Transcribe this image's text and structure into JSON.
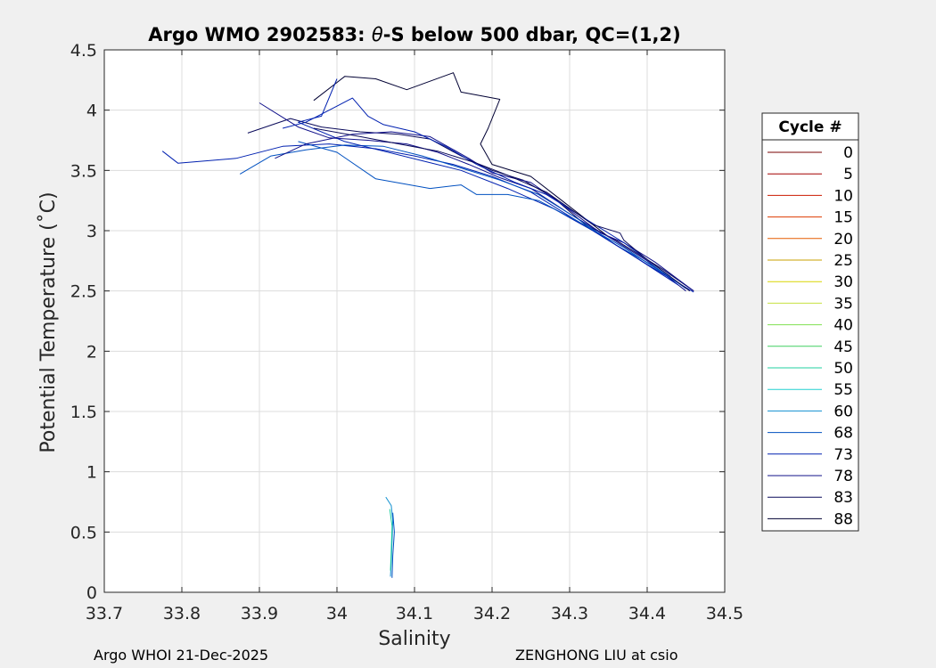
{
  "chart_data": {
    "type": "line",
    "title_prefix": "Argo WMO 2902583: ",
    "title_symbol": "θ",
    "title_suffix": "-S below 500 dbar,  QC=(1,2)",
    "xlabel": "Salinity",
    "ylabel": "Potential Temperature (˚C)",
    "xlim": [
      33.7,
      34.5
    ],
    "ylim": [
      0,
      4.5
    ],
    "xticks": [
      "33.7",
      "33.8",
      "33.9",
      "34",
      "34.1",
      "34.2",
      "34.3",
      "34.4",
      "34.5"
    ],
    "yticks": [
      "0",
      "0.5",
      "1",
      "1.5",
      "2",
      "2.5",
      "3",
      "3.5",
      "4",
      "4.5"
    ],
    "grid": true,
    "legend": {
      "title": "Cycle #",
      "placement": "right",
      "entries": [
        "0",
        "5",
        "10",
        "15",
        "20",
        "25",
        "30",
        "35",
        "40",
        "45",
        "50",
        "55",
        "60",
        "68",
        "73",
        "78",
        "83",
        "88"
      ],
      "colors": [
        "#7a0000",
        "#a30000",
        "#cc1a00",
        "#dd3b00",
        "#e65c00",
        "#c9a000",
        "#d9d500",
        "#c6e040",
        "#80e050",
        "#40d060",
        "#20d0a0",
        "#20d0d0",
        "#1090d0",
        "#0050c0",
        "#0020b0",
        "#10108a",
        "#0a0a5a",
        "#000033"
      ]
    },
    "series": [
      {
        "color": "#000033",
        "points": [
          [
            33.97,
            4.08
          ],
          [
            34.01,
            4.28
          ],
          [
            34.05,
            4.26
          ],
          [
            34.09,
            4.17
          ],
          [
            34.15,
            4.31
          ],
          [
            34.16,
            4.15
          ],
          [
            34.21,
            4.09
          ],
          [
            34.195,
            3.85
          ],
          [
            34.185,
            3.72
          ],
          [
            34.2,
            3.55
          ],
          [
            34.25,
            3.45
          ],
          [
            34.3,
            3.2
          ],
          [
            34.35,
            2.95
          ]
        ]
      },
      {
        "color": "#0a0a5a",
        "points": [
          [
            33.885,
            3.81
          ],
          [
            33.94,
            3.93
          ],
          [
            33.98,
            3.86
          ],
          [
            34.03,
            3.82
          ],
          [
            34.08,
            3.8
          ],
          [
            34.12,
            3.76
          ],
          [
            34.16,
            3.62
          ],
          [
            34.2,
            3.5
          ],
          [
            34.24,
            3.42
          ],
          [
            34.28,
            3.27
          ],
          [
            34.32,
            3.05
          ],
          [
            34.36,
            2.92
          ],
          [
            34.42,
            2.68
          ],
          [
            34.46,
            2.5
          ]
        ]
      },
      {
        "color": "#10108a",
        "points": [
          [
            33.9,
            4.06
          ],
          [
            33.95,
            3.86
          ],
          [
            33.99,
            3.77
          ],
          [
            34.04,
            3.75
          ],
          [
            34.09,
            3.72
          ],
          [
            34.13,
            3.65
          ],
          [
            34.17,
            3.55
          ],
          [
            34.21,
            3.44
          ],
          [
            34.25,
            3.35
          ],
          [
            34.3,
            3.14
          ],
          [
            34.35,
            2.95
          ],
          [
            34.4,
            2.75
          ],
          [
            34.45,
            2.5
          ]
        ]
      },
      {
        "color": "#0020b0",
        "points": [
          [
            33.775,
            3.66
          ],
          [
            33.795,
            3.56
          ],
          [
            33.87,
            3.6
          ],
          [
            33.93,
            3.7
          ],
          [
            33.99,
            3.72
          ],
          [
            34.05,
            3.68
          ],
          [
            34.1,
            3.62
          ],
          [
            34.15,
            3.55
          ],
          [
            34.2,
            3.45
          ],
          [
            34.25,
            3.32
          ],
          [
            34.3,
            3.12
          ],
          [
            34.35,
            2.92
          ],
          [
            34.4,
            2.72
          ],
          [
            34.46,
            2.49
          ]
        ]
      },
      {
        "color": "#0050c0",
        "points": [
          [
            33.875,
            3.47
          ],
          [
            33.915,
            3.62
          ],
          [
            33.96,
            3.67
          ],
          [
            34.01,
            3.71
          ],
          [
            34.06,
            3.7
          ],
          [
            34.11,
            3.62
          ],
          [
            34.16,
            3.52
          ],
          [
            34.21,
            3.42
          ],
          [
            34.26,
            3.3
          ],
          [
            34.31,
            3.1
          ],
          [
            34.36,
            2.88
          ],
          [
            34.41,
            2.7
          ],
          [
            34.45,
            2.52
          ]
        ]
      },
      {
        "color": "#0020b0",
        "points": [
          [
            34.0,
            4.26
          ],
          [
            33.98,
            3.95
          ],
          [
            33.95,
            3.9
          ],
          [
            34.01,
            3.74
          ],
          [
            34.06,
            3.66
          ],
          [
            34.11,
            3.58
          ],
          [
            34.16,
            3.5
          ],
          [
            34.22,
            3.35
          ],
          [
            34.28,
            3.18
          ],
          [
            34.33,
            3.0
          ],
          [
            34.38,
            2.8
          ],
          [
            34.44,
            2.55
          ]
        ]
      },
      {
        "color": "#0050c0",
        "points": [
          [
            33.95,
            3.74
          ],
          [
            34.0,
            3.65
          ],
          [
            34.05,
            3.43
          ],
          [
            34.12,
            3.35
          ],
          [
            34.16,
            3.38
          ],
          [
            34.18,
            3.3
          ],
          [
            34.22,
            3.3
          ],
          [
            34.26,
            3.25
          ],
          [
            34.31,
            3.08
          ],
          [
            34.37,
            2.86
          ],
          [
            34.42,
            2.65
          ]
        ]
      },
      {
        "color": "#10108a",
        "points": [
          [
            33.92,
            3.6
          ],
          [
            33.96,
            3.72
          ],
          [
            34.02,
            3.8
          ],
          [
            34.07,
            3.82
          ],
          [
            34.12,
            3.78
          ],
          [
            34.17,
            3.6
          ],
          [
            34.2,
            3.48
          ],
          [
            34.25,
            3.4
          ],
          [
            34.29,
            3.22
          ],
          [
            34.34,
            2.98
          ],
          [
            34.37,
            2.9
          ],
          [
            34.41,
            2.74
          ],
          [
            34.46,
            2.5
          ]
        ]
      },
      {
        "color": "#0020b0",
        "points": [
          [
            33.93,
            3.85
          ],
          [
            33.96,
            3.9
          ],
          [
            34.02,
            4.1
          ],
          [
            34.04,
            3.95
          ],
          [
            34.06,
            3.88
          ],
          [
            34.1,
            3.82
          ],
          [
            34.14,
            3.7
          ],
          [
            34.18,
            3.55
          ],
          [
            34.23,
            3.4
          ],
          [
            34.27,
            3.3
          ],
          [
            34.32,
            3.1
          ],
          [
            34.37,
            2.9
          ],
          [
            34.43,
            2.62
          ]
        ]
      },
      {
        "color": "#0a0a5a",
        "points": [
          [
            33.97,
            3.85
          ],
          [
            34.03,
            3.78
          ],
          [
            34.08,
            3.72
          ],
          [
            34.13,
            3.66
          ],
          [
            34.18,
            3.56
          ],
          [
            34.22,
            3.46
          ],
          [
            34.27,
            3.32
          ],
          [
            34.33,
            3.05
          ],
          [
            34.365,
            2.98
          ],
          [
            34.37,
            2.92
          ],
          [
            34.4,
            2.76
          ],
          [
            34.455,
            2.5
          ]
        ]
      },
      {
        "color": "#1090d0",
        "points": [
          [
            34.063,
            0.79
          ],
          [
            34.07,
            0.72
          ],
          [
            34.072,
            0.6
          ],
          [
            34.071,
            0.42
          ],
          [
            34.07,
            0.25
          ],
          [
            34.069,
            0.13
          ]
        ]
      },
      {
        "color": "#20d0a0",
        "points": [
          [
            34.068,
            0.69
          ],
          [
            34.071,
            0.55
          ],
          [
            34.07,
            0.35
          ],
          [
            34.069,
            0.18
          ]
        ]
      },
      {
        "color": "#0050c0",
        "points": [
          [
            34.072,
            0.66
          ],
          [
            34.074,
            0.5
          ],
          [
            34.072,
            0.3
          ],
          [
            34.071,
            0.12
          ]
        ]
      }
    ]
  },
  "footer": {
    "left": "Argo WHOI 21-Dec-2025",
    "right": "ZENGHONG LIU at csio"
  }
}
